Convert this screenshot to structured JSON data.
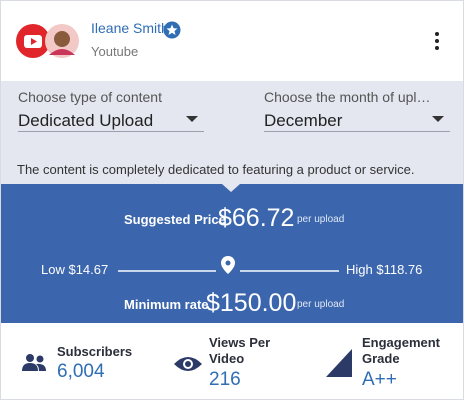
{
  "header": {
    "name": "Ileane Smith",
    "platform": "Youtube"
  },
  "filters": [
    {
      "label": "Choose type of content",
      "value": "Dedicated Upload"
    },
    {
      "label": "Choose the month of upl…",
      "value": "December"
    }
  ],
  "description": "The content is completely dedicated to featuring a product or service.",
  "pricing": {
    "suggested_label": "Suggested Price",
    "suggested_price": "$66.72",
    "suggested_unit": "per upload",
    "low": "Low $14.67",
    "high": "High $118.76",
    "minimum_label": "Minimum rate",
    "minimum_price": "$150.00",
    "minimum_unit": "per upload"
  },
  "stats": [
    {
      "label": "Subscribers",
      "value": "6,004"
    },
    {
      "label": [
        "Views Per",
        "Video"
      ],
      "value": "216"
    },
    {
      "label": [
        "Engagement",
        "Grade"
      ],
      "value": "A++"
    }
  ]
}
